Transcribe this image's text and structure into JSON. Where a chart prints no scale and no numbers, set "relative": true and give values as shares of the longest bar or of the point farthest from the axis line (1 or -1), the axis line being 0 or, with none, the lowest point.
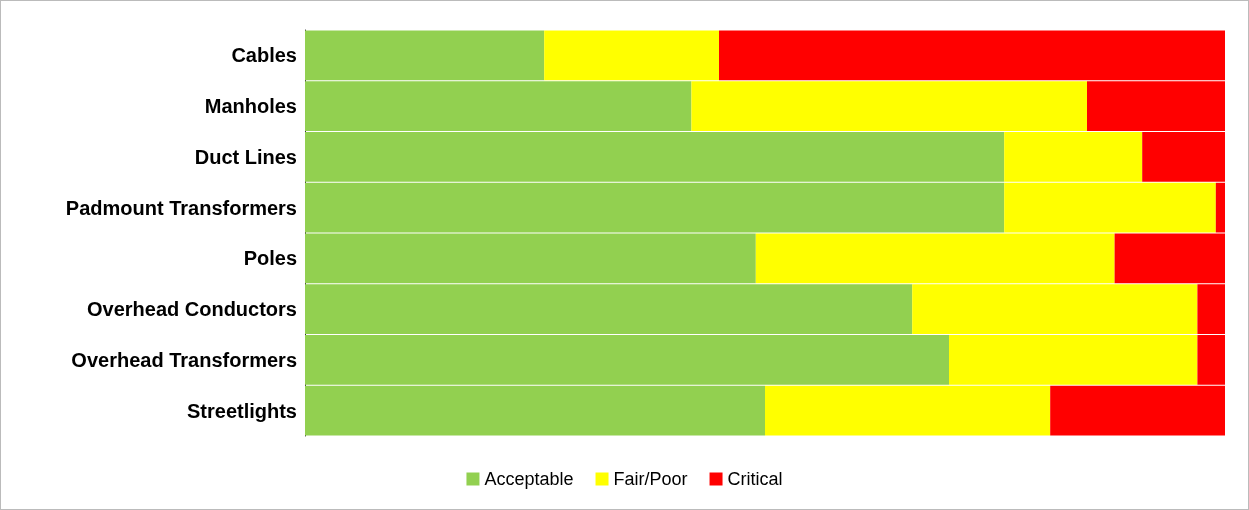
{
  "chart_data": {
    "type": "bar",
    "orientation": "horizontal",
    "stacked": true,
    "relative": true,
    "categories": [
      "Cables",
      "Manholes",
      "Duct Lines",
      "Padmount Transformers",
      "Poles",
      "Overhead Conductors",
      "Overhead Transformers",
      "Streetlights"
    ],
    "series": [
      {
        "name": "Acceptable",
        "color": "#92d050",
        "values": [
          0.26,
          0.42,
          0.76,
          0.76,
          0.49,
          0.66,
          0.7,
          0.5
        ]
      },
      {
        "name": "Fair/Poor",
        "color": "#ffff00",
        "values": [
          0.19,
          0.43,
          0.15,
          0.23,
          0.39,
          0.31,
          0.27,
          0.31
        ]
      },
      {
        "name": "Critical",
        "color": "#ff0000",
        "values": [
          0.55,
          0.15,
          0.09,
          0.01,
          0.12,
          0.03,
          0.03,
          0.19
        ]
      }
    ],
    "legend": "bottom"
  }
}
